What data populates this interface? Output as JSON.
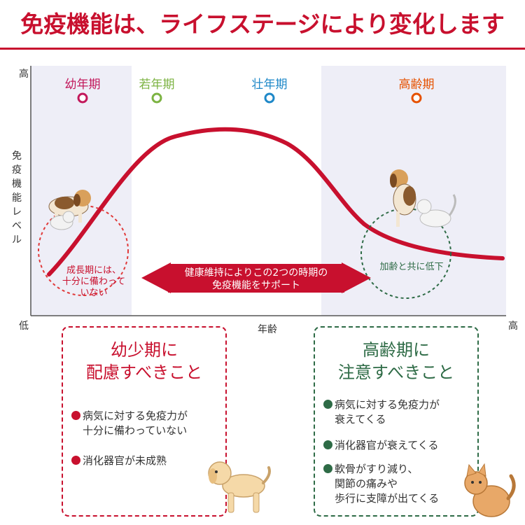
{
  "header": {
    "title": "免疫機能は、ライフステージにより変化します"
  },
  "axis": {
    "y_high": "高",
    "y_low": "低",
    "y_label_chars": [
      "免",
      "疫",
      "機",
      "能",
      "レ",
      "ベ",
      "ル"
    ],
    "x_label": "年齢",
    "x_high": "高"
  },
  "stages": [
    {
      "label": "幼年期",
      "color": "#c2185b"
    },
    {
      "label": "若年期",
      "color": "#7cb342"
    },
    {
      "label": "壮年期",
      "color": "#1e88c8"
    },
    {
      "label": "高齢期",
      "color": "#e65100"
    }
  ],
  "annotations": {
    "young_note_lines": [
      "成長期には、",
      "十分に備わって",
      "いない"
    ],
    "senior_note": "加齢と共に低下",
    "support_lines": [
      "健康維持によりこの2つの時期の",
      "免疫機能をサポート"
    ]
  },
  "colors": {
    "brand_red": "#c8102e",
    "senior_green": "#2e6b46",
    "shade": "#eeeef7"
  },
  "cards": {
    "young": {
      "title_lines": [
        "幼少期に",
        "配慮すべきこと"
      ],
      "items": [
        {
          "lines": [
            "病気に対する免疫力が",
            "十分に備わっていない"
          ]
        },
        {
          "lines": [
            "消化器官が未成熟"
          ]
        }
      ]
    },
    "senior": {
      "title_lines": [
        "高齢期に",
        "注意すべきこと"
      ],
      "items": [
        {
          "lines": [
            "病気に対する免疫力が",
            "衰えてくる"
          ]
        },
        {
          "lines": [
            "消化器官が衰えてくる"
          ]
        },
        {
          "lines": [
            "軟骨がすり減り、",
            "関節の痛みや",
            "歩行に支障が出てくる"
          ]
        }
      ]
    }
  }
}
